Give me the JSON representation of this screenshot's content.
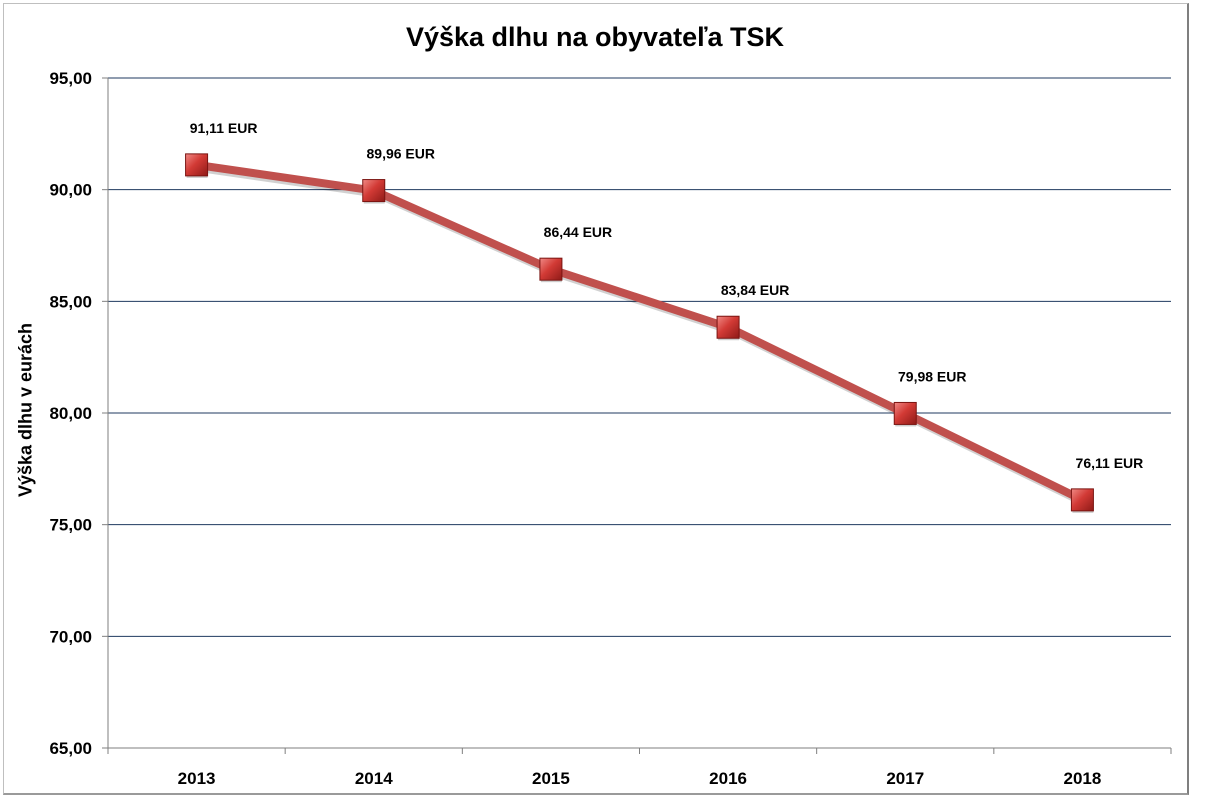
{
  "chart_data": {
    "type": "line",
    "title": "Výška dlhu na obyvateľa TSK",
    "xlabel": "",
    "ylabel": "Výška dlhu v eurách",
    "categories": [
      "2013",
      "2014",
      "2015",
      "2016",
      "2017",
      "2018"
    ],
    "values": [
      91.11,
      89.96,
      86.44,
      83.84,
      79.98,
      76.11
    ],
    "data_labels": [
      "91,11 EUR",
      "89,96 EUR",
      "86,44 EUR",
      "83,84 EUR",
      "79,98 EUR",
      "76,11 EUR"
    ],
    "ylim": [
      65,
      95
    ],
    "yticks": [
      65,
      70,
      75,
      80,
      85,
      90,
      95
    ],
    "ytick_labels": [
      "65,00",
      "70,00",
      "75,00",
      "80,00",
      "85,00",
      "90,00",
      "95,00"
    ],
    "grid": "horizontal",
    "legend": "none",
    "colors": {
      "line": "#c0504d",
      "marker": "#c0302d",
      "grid": "#1f3a5f"
    }
  }
}
